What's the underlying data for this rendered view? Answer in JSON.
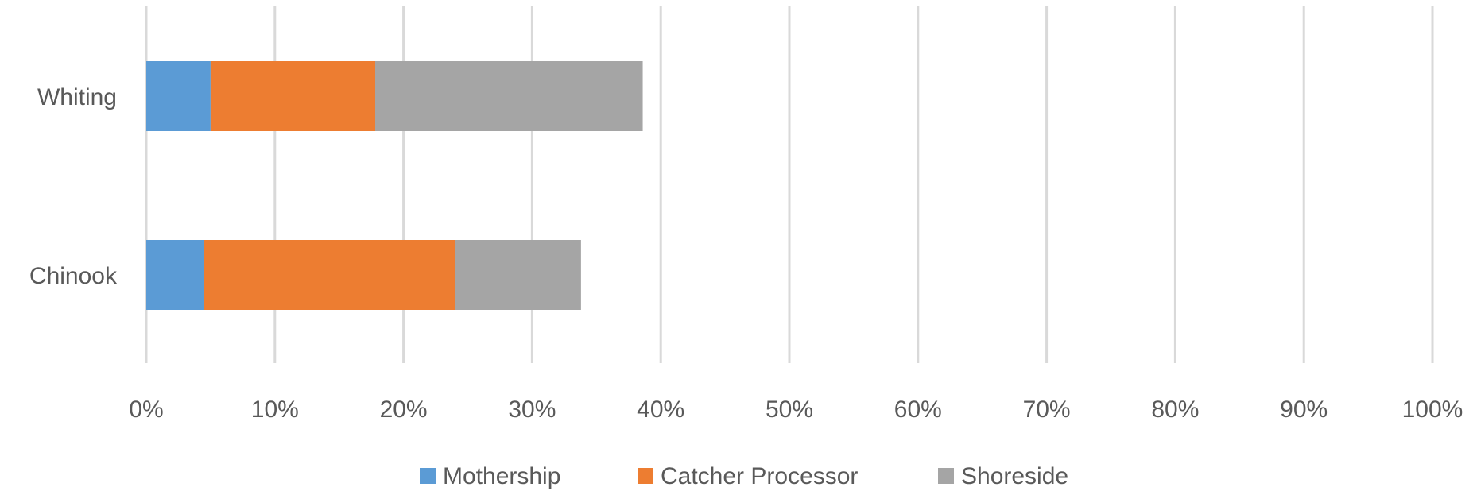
{
  "chart_data": {
    "type": "bar",
    "orientation": "horizontal",
    "stacked": true,
    "categories": [
      "Whiting",
      "Chinook"
    ],
    "series": [
      {
        "name": "Mothership",
        "values": [
          5,
          4.5
        ],
        "color": "#5B9BD5"
      },
      {
        "name": "Catcher Processor",
        "values": [
          12.8,
          19.5
        ],
        "color": "#ED7D31"
      },
      {
        "name": "Shoreside",
        "values": [
          20.8,
          9.8
        ],
        "color": "#A5A5A5"
      }
    ],
    "xlim": [
      0,
      100
    ],
    "x_ticks": [
      "0%",
      "10%",
      "20%",
      "30%",
      "40%",
      "50%",
      "60%",
      "70%",
      "80%",
      "90%",
      "100%"
    ],
    "grid": "vertical",
    "legend_position": "bottom",
    "title": "",
    "xlabel": "",
    "ylabel": ""
  }
}
